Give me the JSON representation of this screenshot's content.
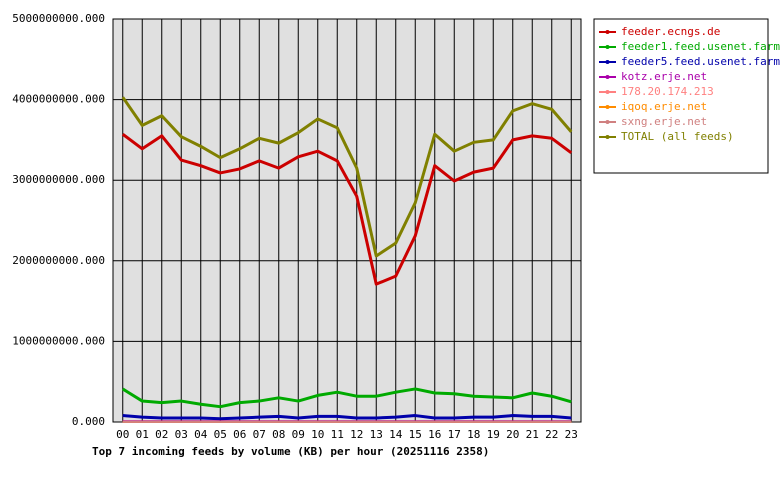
{
  "chart_data": {
    "type": "line",
    "title": "Top 7 incoming feeds by volume (KB) per hour (20251116 2358)",
    "categories": [
      "00",
      "01",
      "02",
      "03",
      "04",
      "05",
      "06",
      "07",
      "08",
      "09",
      "10",
      "11",
      "12",
      "13",
      "14",
      "15",
      "16",
      "17",
      "18",
      "19",
      "20",
      "21",
      "22",
      "23"
    ],
    "ylim": [
      0,
      5000000000
    ],
    "yticks": [
      {
        "value": 0,
        "label": "0.000"
      },
      {
        "value": 1000000000,
        "label": "1000000000.000"
      },
      {
        "value": 2000000000,
        "label": "2000000000.000"
      },
      {
        "value": 3000000000,
        "label": "3000000000.000"
      },
      {
        "value": 4000000000,
        "label": "4000000000.000"
      },
      {
        "value": 5000000000,
        "label": "5000000000.000"
      }
    ],
    "grid": true,
    "legend": "right",
    "series": [
      {
        "name": "feeder.ecngs.de",
        "color": "#cc0000",
        "values": [
          3570000000,
          3390000000,
          3550000000,
          3250000000,
          3180000000,
          3090000000,
          3140000000,
          3240000000,
          3150000000,
          3290000000,
          3360000000,
          3240000000,
          2800000000,
          1710000000,
          1810000000,
          2310000000,
          3180000000,
          2990000000,
          3100000000,
          3150000000,
          3500000000,
          3550000000,
          3520000000,
          3340000000
        ]
      },
      {
        "name": "feeder1.feed.usenet.farm",
        "color": "#00aa00",
        "values": [
          410000000,
          260000000,
          240000000,
          260000000,
          220000000,
          190000000,
          240000000,
          260000000,
          300000000,
          260000000,
          330000000,
          370000000,
          320000000,
          320000000,
          370000000,
          410000000,
          360000000,
          350000000,
          320000000,
          310000000,
          300000000,
          360000000,
          320000000,
          250000000
        ]
      },
      {
        "name": "feeder5.feed.usenet.farm",
        "color": "#0000aa",
        "values": [
          80000000,
          60000000,
          50000000,
          50000000,
          50000000,
          40000000,
          50000000,
          60000000,
          70000000,
          50000000,
          70000000,
          70000000,
          50000000,
          50000000,
          60000000,
          80000000,
          50000000,
          50000000,
          60000000,
          60000000,
          80000000,
          70000000,
          70000000,
          50000000
        ]
      },
      {
        "name": "kotz.erje.net",
        "color": "#aa00aa",
        "values": [
          10000000,
          10000000,
          10000000,
          10000000,
          10000000,
          10000000,
          10000000,
          10000000,
          10000000,
          10000000,
          10000000,
          10000000,
          10000000,
          10000000,
          10000000,
          10000000,
          10000000,
          10000000,
          10000000,
          10000000,
          10000000,
          10000000,
          10000000,
          10000000
        ]
      },
      {
        "name": "178.20.174.213",
        "color": "#ff8080",
        "values": [
          2000000,
          2000000,
          2000000,
          2000000,
          2000000,
          2000000,
          2000000,
          2000000,
          2000000,
          2000000,
          2000000,
          2000000,
          2000000,
          2000000,
          2000000,
          2000000,
          2000000,
          2000000,
          2000000,
          2000000,
          2000000,
          2000000,
          2000000,
          2000000
        ]
      },
      {
        "name": "iqoq.erje.net",
        "color": "#ff8c00",
        "values": [
          1000000,
          1000000,
          1000000,
          1000000,
          1000000,
          1000000,
          1000000,
          1000000,
          1000000,
          1000000,
          1000000,
          1000000,
          1000000,
          1000000,
          1000000,
          1000000,
          1000000,
          1000000,
          1000000,
          1000000,
          1000000,
          1000000,
          1000000,
          1000000
        ]
      },
      {
        "name": "sxng.erje.net",
        "color": "#d08080",
        "values": [
          1000000,
          1000000,
          1000000,
          1000000,
          1000000,
          1000000,
          1000000,
          1000000,
          1000000,
          1000000,
          1000000,
          1000000,
          1000000,
          1000000,
          1000000,
          1000000,
          1000000,
          1000000,
          1000000,
          1000000,
          1000000,
          1000000,
          1000000,
          1000000
        ]
      },
      {
        "name": "TOTAL (all feeds)",
        "color": "#808000",
        "values": [
          4030000000,
          3680000000,
          3800000000,
          3540000000,
          3420000000,
          3280000000,
          3390000000,
          3520000000,
          3460000000,
          3590000000,
          3760000000,
          3650000000,
          3150000000,
          2060000000,
          2220000000,
          2720000000,
          3570000000,
          3360000000,
          3470000000,
          3500000000,
          3860000000,
          3950000000,
          3880000000,
          3600000000
        ]
      }
    ]
  }
}
